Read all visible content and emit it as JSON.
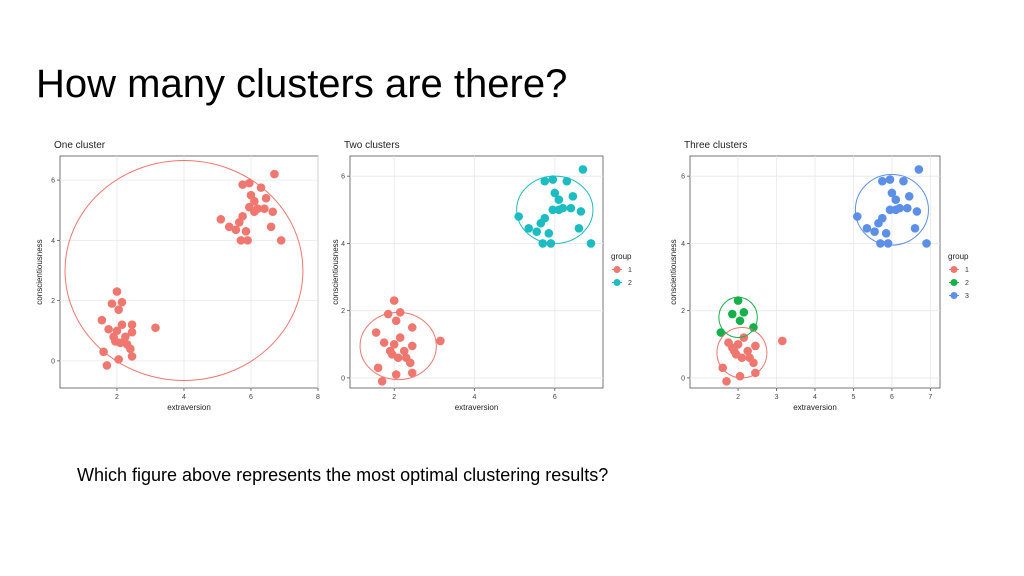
{
  "slide": {
    "title": "How many clusters are there?",
    "question": "Which figure above represents the most optimal clustering results?"
  },
  "chart_data": [
    {
      "type": "scatter",
      "title": "One cluster",
      "xlabel": "extraversion",
      "ylabel": "conscientiousness",
      "xlim": [
        0.3,
        8
      ],
      "ylim": [
        -0.9,
        6.8
      ],
      "xticks": [
        2,
        4,
        6,
        8
      ],
      "yticks": [
        0,
        2,
        4,
        6
      ],
      "grid": true,
      "legend": null,
      "series": [
        {
          "color": "#F0776F",
          "points": [
            [
              1.7,
              -0.15
            ],
            [
              1.6,
              0.3
            ],
            [
              2.05,
              0.05
            ],
            [
              2.45,
              0.15
            ],
            [
              1.9,
              0.8
            ],
            [
              2.1,
              0.6
            ],
            [
              2.3,
              0.55
            ],
            [
              2.4,
              0.4
            ],
            [
              2.0,
              1.0
            ],
            [
              2.15,
              1.2
            ],
            [
              2.45,
              0.95
            ],
            [
              1.75,
              1.05
            ],
            [
              1.55,
              1.35
            ],
            [
              1.85,
              1.9
            ],
            [
              2.05,
              1.7
            ],
            [
              2.0,
              2.3
            ],
            [
              2.15,
              1.95
            ],
            [
              2.45,
              1.2
            ],
            [
              3.15,
              1.1
            ],
            [
              2.25,
              0.8
            ],
            [
              1.95,
              0.65
            ]
          ]
        },
        {
          "color": "#F0776F",
          "points": [
            [
              5.1,
              4.7
            ],
            [
              5.35,
              4.45
            ],
            [
              5.55,
              4.35
            ],
            [
              5.65,
              4.6
            ],
            [
              5.85,
              4.3
            ],
            [
              5.7,
              4.0
            ],
            [
              5.9,
              4.0
            ],
            [
              5.75,
              4.8
            ],
            [
              5.95,
              5.1
            ],
            [
              6.1,
              5.3
            ],
            [
              6.1,
              4.95
            ],
            [
              6.45,
              5.4
            ],
            [
              6.4,
              5.05
            ],
            [
              6.65,
              4.95
            ],
            [
              6.6,
              4.45
            ],
            [
              6.9,
              4.0
            ],
            [
              6.3,
              5.75
            ],
            [
              6.7,
              6.2
            ],
            [
              5.95,
              5.9
            ],
            [
              5.75,
              5.85
            ],
            [
              6.0,
              5.5
            ],
            [
              6.2,
              5.05
            ]
          ]
        }
      ],
      "ellipses": [
        {
          "color": "#F0776F",
          "cx": 4.0,
          "cy": 3.0,
          "rx": 3.55,
          "ry": 3.65
        }
      ]
    },
    {
      "type": "scatter",
      "title": "Two clusters",
      "xlabel": "extraversion",
      "ylabel": "conscientiousness",
      "xlim": [
        0.9,
        7.2
      ],
      "ylim": [
        -0.3,
        6.6
      ],
      "xticks": [
        2,
        4,
        6
      ],
      "yticks": [
        0,
        2,
        4,
        6
      ],
      "grid": true,
      "legend": {
        "title": "group",
        "labels": [
          "1",
          "2"
        ],
        "position": "right"
      },
      "series": [
        {
          "name": "1",
          "color": "#F0776F",
          "points": [
            [
              1.7,
              -0.1
            ],
            [
              1.6,
              0.3
            ],
            [
              2.05,
              0.1
            ],
            [
              2.45,
              0.15
            ],
            [
              1.9,
              0.8
            ],
            [
              2.1,
              0.6
            ],
            [
              2.3,
              0.6
            ],
            [
              2.4,
              0.45
            ],
            [
              2.0,
              1.0
            ],
            [
              2.15,
              1.2
            ],
            [
              2.45,
              0.95
            ],
            [
              1.75,
              1.05
            ],
            [
              1.55,
              1.35
            ],
            [
              1.85,
              1.9
            ],
            [
              2.05,
              1.7
            ],
            [
              2.0,
              2.3
            ],
            [
              2.15,
              1.95
            ],
            [
              2.45,
              1.5
            ],
            [
              3.15,
              1.1
            ],
            [
              2.25,
              0.8
            ],
            [
              1.95,
              0.7
            ]
          ]
        },
        {
          "name": "2",
          "color": "#1CBDC2",
          "points": [
            [
              5.1,
              4.8
            ],
            [
              5.35,
              4.45
            ],
            [
              5.55,
              4.35
            ],
            [
              5.65,
              4.6
            ],
            [
              5.85,
              4.3
            ],
            [
              5.7,
              4.0
            ],
            [
              5.9,
              4.0
            ],
            [
              5.75,
              4.75
            ],
            [
              5.95,
              5.0
            ],
            [
              6.1,
              5.3
            ],
            [
              6.1,
              5.0
            ],
            [
              6.45,
              5.4
            ],
            [
              6.4,
              5.05
            ],
            [
              6.65,
              4.95
            ],
            [
              6.6,
              4.45
            ],
            [
              6.9,
              4.0
            ],
            [
              6.3,
              5.85
            ],
            [
              6.7,
              6.2
            ],
            [
              5.95,
              5.9
            ],
            [
              5.75,
              5.85
            ],
            [
              6.0,
              5.5
            ],
            [
              6.2,
              5.05
            ]
          ]
        }
      ],
      "ellipses": [
        {
          "color": "#F0776F",
          "cx": 2.1,
          "cy": 0.95,
          "rx": 0.95,
          "ry": 1.0
        },
        {
          "color": "#1CBDC2",
          "cx": 6.0,
          "cy": 5.0,
          "rx": 0.95,
          "ry": 1.0
        }
      ]
    },
    {
      "type": "scatter",
      "title": "Three clusters",
      "xlabel": "extraversion",
      "ylabel": "conscientiousness",
      "xlim": [
        0.75,
        7.25
      ],
      "ylim": [
        -0.3,
        6.6
      ],
      "xticks": [
        2,
        3,
        4,
        5,
        6,
        7
      ],
      "yticks": [
        0,
        2,
        4,
        6
      ],
      "grid": true,
      "legend": {
        "title": "group",
        "labels": [
          "1",
          "2",
          "3"
        ],
        "position": "right"
      },
      "series": [
        {
          "name": "1",
          "color": "#F0776F",
          "points": [
            [
              1.7,
              -0.1
            ],
            [
              1.6,
              0.3
            ],
            [
              2.05,
              0.05
            ],
            [
              2.45,
              0.15
            ],
            [
              1.9,
              0.8
            ],
            [
              2.1,
              0.6
            ],
            [
              2.3,
              0.6
            ],
            [
              2.4,
              0.45
            ],
            [
              2.0,
              1.0
            ],
            [
              2.15,
              1.2
            ],
            [
              2.45,
              0.95
            ],
            [
              1.75,
              1.05
            ],
            [
              1.85,
              0.9
            ],
            [
              3.15,
              1.1
            ],
            [
              2.25,
              0.8
            ],
            [
              1.95,
              0.7
            ]
          ]
        },
        {
          "name": "2",
          "color": "#16B04A",
          "points": [
            [
              1.55,
              1.35
            ],
            [
              1.85,
              1.9
            ],
            [
              2.05,
              1.7
            ],
            [
              2.0,
              2.3
            ],
            [
              2.15,
              1.95
            ],
            [
              2.4,
              1.5
            ]
          ]
        },
        {
          "name": "3",
          "color": "#5B8FE8",
          "points": [
            [
              5.1,
              4.8
            ],
            [
              5.35,
              4.45
            ],
            [
              5.55,
              4.35
            ],
            [
              5.65,
              4.6
            ],
            [
              5.85,
              4.3
            ],
            [
              5.7,
              4.0
            ],
            [
              5.9,
              4.0
            ],
            [
              5.75,
              4.75
            ],
            [
              5.95,
              5.0
            ],
            [
              6.1,
              5.3
            ],
            [
              6.1,
              5.0
            ],
            [
              6.45,
              5.4
            ],
            [
              6.4,
              5.05
            ],
            [
              6.65,
              4.95
            ],
            [
              6.6,
              4.45
            ],
            [
              6.9,
              4.0
            ],
            [
              6.3,
              5.85
            ],
            [
              6.7,
              6.2
            ],
            [
              5.95,
              5.9
            ],
            [
              5.75,
              5.85
            ],
            [
              6.0,
              5.5
            ],
            [
              6.2,
              5.05
            ]
          ]
        }
      ],
      "ellipses": [
        {
          "color": "#F0776F",
          "cx": 2.1,
          "cy": 0.75,
          "rx": 0.65,
          "ry": 0.75
        },
        {
          "color": "#16B04A",
          "cx": 2.0,
          "cy": 1.8,
          "rx": 0.5,
          "ry": 0.6
        },
        {
          "color": "#5B8FE8",
          "cx": 6.0,
          "cy": 5.0,
          "rx": 0.95,
          "ry": 1.05
        }
      ]
    }
  ]
}
